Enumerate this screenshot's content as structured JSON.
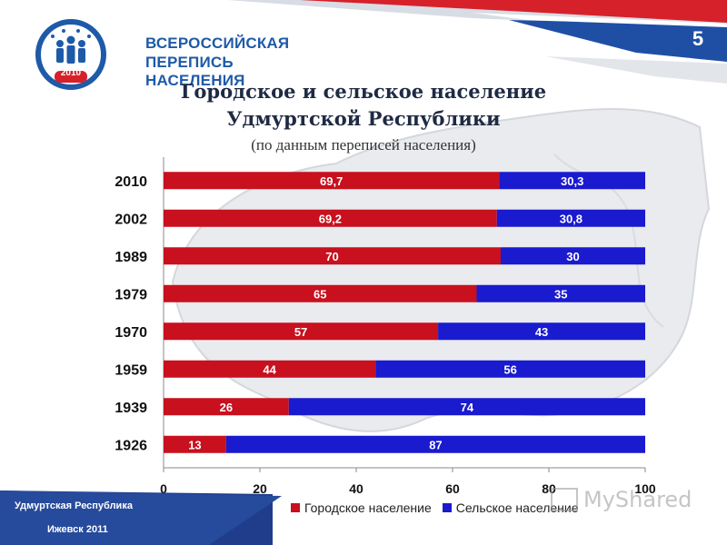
{
  "slide": {
    "number": "5"
  },
  "logo": {
    "line1": "ВСЕРОССИЙСКАЯ",
    "line2": "ПЕРЕПИСЬ НАСЕЛЕНИЯ",
    "year": "2010"
  },
  "header": {
    "title_line1": "Городское и сельское население",
    "title_line2": "Удмуртской Республики",
    "subtitle": "(по данным переписей населения)"
  },
  "footer": {
    "region": "Удмуртская Республика",
    "city_year": "Ижевск 2011"
  },
  "watermark": {
    "text": "MyShared"
  },
  "colors": {
    "urban": "#c8101e",
    "rural": "#1a1acf",
    "footer": "#1f3d8a"
  },
  "chart_data": {
    "type": "bar",
    "orientation": "horizontal",
    "stacked": true,
    "categories": [
      "2010",
      "2002",
      "1989",
      "1979",
      "1970",
      "1959",
      "1939",
      "1926"
    ],
    "series": [
      {
        "name": "Городское население",
        "values": [
          69.7,
          69.2,
          70,
          65,
          57,
          44,
          26,
          13
        ],
        "labels": [
          "69,7",
          "69,2",
          "70",
          "65",
          "57",
          "44",
          "26",
          "13"
        ]
      },
      {
        "name": "Сельское население",
        "values": [
          30.3,
          30.8,
          30,
          35,
          43,
          56,
          74,
          87
        ],
        "labels": [
          "30,3",
          "30,8",
          "30",
          "35",
          "43",
          "56",
          "74",
          "87"
        ]
      }
    ],
    "xlim": [
      0,
      100
    ],
    "xticks": [
      "0",
      "20",
      "40",
      "60",
      "80",
      "100"
    ],
    "legend_position": "bottom"
  }
}
